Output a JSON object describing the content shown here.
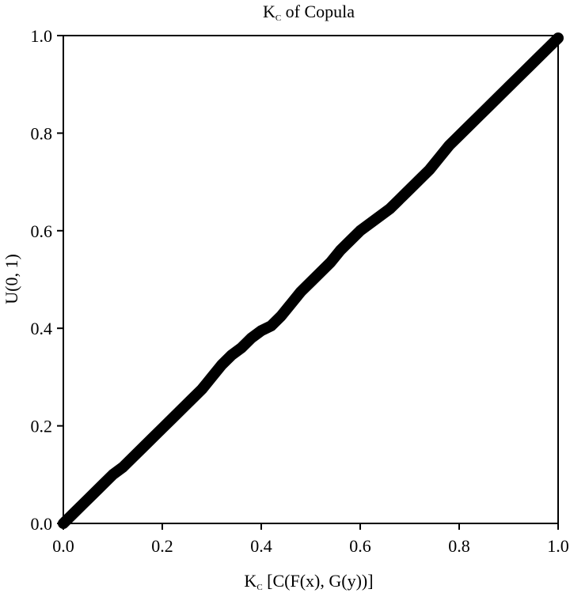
{
  "chart_data": {
    "type": "line",
    "title_main": "K",
    "title_sub": "C",
    "title_rest": " of Copula",
    "xlabel_main": "K",
    "xlabel_sub": "C",
    "xlabel_rest": " [C(F(x), G(y))]",
    "ylabel": "U(0, 1)",
    "xlim": [
      0,
      1
    ],
    "ylim": [
      0,
      1
    ],
    "x_ticks": [
      "0.0",
      "0.2",
      "0.4",
      "0.6",
      "0.8",
      "1.0"
    ],
    "y_ticks": [
      "0.0",
      "0.2",
      "0.4",
      "0.6",
      "0.8",
      "1.0"
    ],
    "grid": false,
    "legend": "none",
    "line_color": "#000000",
    "series": [
      {
        "x": [
          0.0,
          0.02,
          0.04,
          0.06,
          0.08,
          0.1,
          0.12,
          0.14,
          0.16,
          0.18,
          0.2,
          0.22,
          0.24,
          0.26,
          0.28,
          0.3,
          0.32,
          0.34,
          0.36,
          0.38,
          0.4,
          0.42,
          0.44,
          0.46,
          0.48,
          0.5,
          0.52,
          0.54,
          0.56,
          0.58,
          0.6,
          0.62,
          0.64,
          0.66,
          0.68,
          0.7,
          0.72,
          0.74,
          0.76,
          0.78,
          0.8,
          0.82,
          0.84,
          0.86,
          0.88,
          0.9,
          0.92,
          0.94,
          0.96,
          0.98,
          1.0
        ],
        "y": [
          0.0,
          0.02,
          0.04,
          0.06,
          0.08,
          0.1,
          0.115,
          0.135,
          0.155,
          0.175,
          0.195,
          0.215,
          0.235,
          0.255,
          0.275,
          0.3,
          0.325,
          0.345,
          0.36,
          0.38,
          0.395,
          0.405,
          0.425,
          0.45,
          0.475,
          0.495,
          0.515,
          0.535,
          0.56,
          0.58,
          0.6,
          0.615,
          0.63,
          0.645,
          0.665,
          0.685,
          0.705,
          0.725,
          0.75,
          0.775,
          0.795,
          0.815,
          0.835,
          0.855,
          0.875,
          0.895,
          0.915,
          0.935,
          0.955,
          0.975,
          0.995
        ]
      }
    ]
  }
}
